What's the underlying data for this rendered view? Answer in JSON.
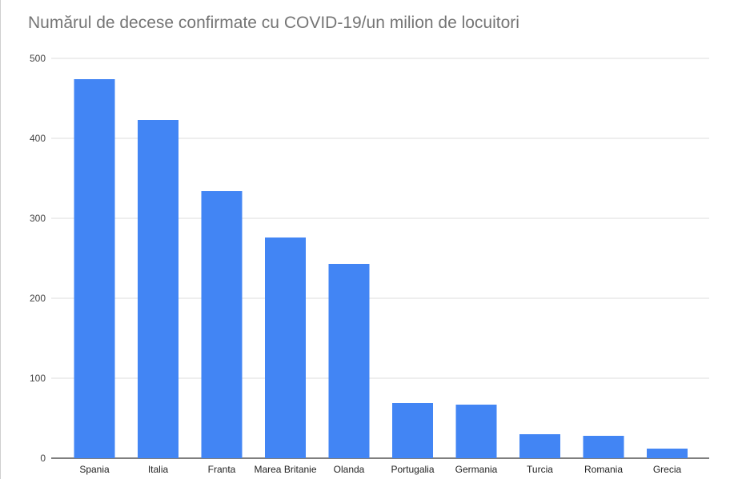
{
  "chart_data": {
    "type": "bar",
    "title": "Numărul de decese confirmate cu COVID-19/un milion de locuitori",
    "xlabel": "",
    "ylabel": "",
    "categories": [
      "Spania",
      "Italia",
      "Franta",
      "Marea Britanie",
      "Olanda",
      "Portugalia",
      "Germania",
      "Turcia",
      "Romania",
      "Grecia"
    ],
    "values": [
      474,
      423,
      334,
      276,
      243,
      69,
      67,
      30,
      28,
      12
    ],
    "ylim": [
      0,
      500
    ],
    "yticks": [
      "0",
      "100",
      "200",
      "300",
      "400",
      "500"
    ],
    "grid": true,
    "legend": "none",
    "bar_color": "#4285f4"
  }
}
